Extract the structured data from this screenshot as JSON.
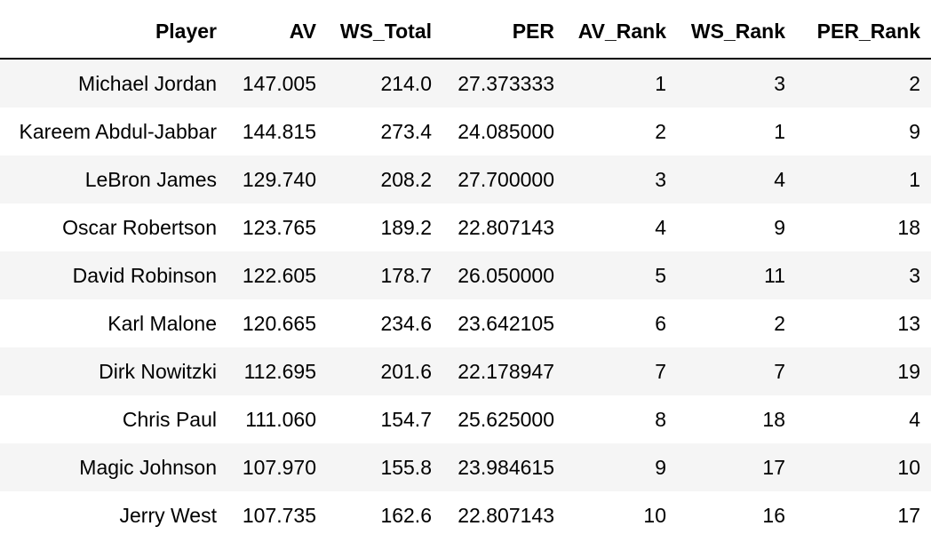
{
  "table": {
    "columns": [
      "Player",
      "AV",
      "WS_Total",
      "PER",
      "AV_Rank",
      "WS_Rank",
      "PER_Rank"
    ],
    "rows": [
      [
        "Michael Jordan",
        "147.005",
        "214.0",
        "27.373333",
        "1",
        "3",
        "2"
      ],
      [
        "Kareem Abdul-Jabbar",
        "144.815",
        "273.4",
        "24.085000",
        "2",
        "1",
        "9"
      ],
      [
        "LeBron James",
        "129.740",
        "208.2",
        "27.700000",
        "3",
        "4",
        "1"
      ],
      [
        "Oscar Robertson",
        "123.765",
        "189.2",
        "22.807143",
        "4",
        "9",
        "18"
      ],
      [
        "David Robinson",
        "122.605",
        "178.7",
        "26.050000",
        "5",
        "11",
        "3"
      ],
      [
        "Karl Malone",
        "120.665",
        "234.6",
        "23.642105",
        "6",
        "2",
        "13"
      ],
      [
        "Dirk Nowitzki",
        "112.695",
        "201.6",
        "22.178947",
        "7",
        "7",
        "19"
      ],
      [
        "Chris Paul",
        "111.060",
        "154.7",
        "25.625000",
        "8",
        "18",
        "4"
      ],
      [
        "Magic Johnson",
        "107.970",
        "155.8",
        "23.984615",
        "9",
        "17",
        "10"
      ],
      [
        "Jerry West",
        "107.735",
        "162.6",
        "22.807143",
        "10",
        "16",
        "17"
      ]
    ]
  }
}
